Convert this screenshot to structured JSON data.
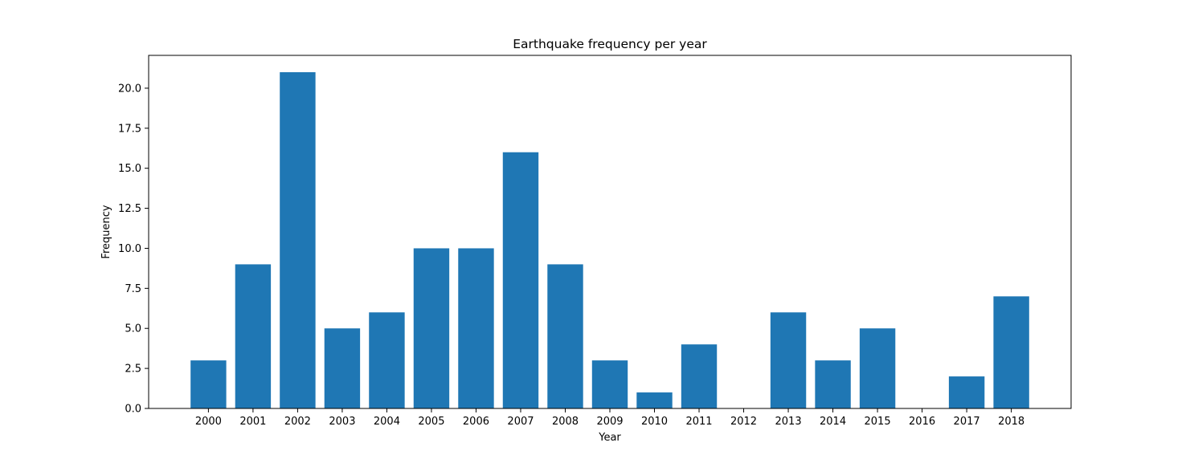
{
  "chart_data": {
    "type": "bar",
    "title": "Earthquake frequency per year",
    "xlabel": "Year",
    "ylabel": "Frequency",
    "categories": [
      "2000",
      "2001",
      "2002",
      "2003",
      "2004",
      "2005",
      "2006",
      "2007",
      "2008",
      "2009",
      "2010",
      "2011",
      "2012",
      "2013",
      "2014",
      "2015",
      "2016",
      "2017",
      "2018"
    ],
    "values": [
      3,
      9,
      21,
      5,
      6,
      10,
      10,
      16,
      9,
      3,
      1,
      4,
      0,
      6,
      3,
      5,
      0,
      2,
      7
    ],
    "ylim": [
      0,
      22.05
    ],
    "yticks": [
      0.0,
      2.5,
      5.0,
      7.5,
      10.0,
      12.5,
      15.0,
      17.5,
      20.0
    ],
    "ytick_labels": [
      "0.0",
      "2.5",
      "5.0",
      "7.5",
      "10.0",
      "12.5",
      "15.0",
      "17.5",
      "20.0"
    ],
    "bar_color": "#1f77b4",
    "grid": false,
    "legend": "none"
  }
}
